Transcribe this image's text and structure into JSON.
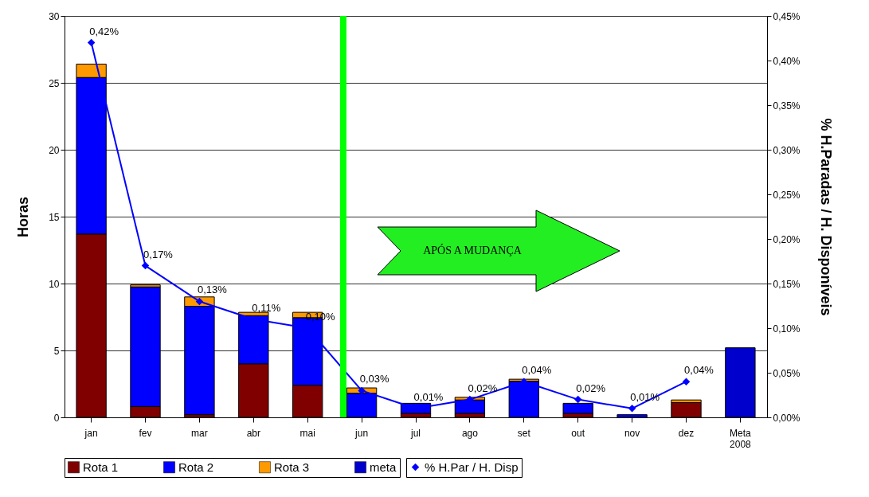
{
  "chart_data": {
    "type": "bar",
    "stacked": true,
    "categories": [
      "jan",
      "fev",
      "mar",
      "abr",
      "mai",
      "jun",
      "jul",
      "ago",
      "set",
      "out",
      "nov",
      "dez",
      "Meta 2008"
    ],
    "series": [
      {
        "name": "Rota 1",
        "color": "#800000",
        "values": [
          13.7,
          0.8,
          0.2,
          4.0,
          2.4,
          null,
          0.3,
          0.3,
          null,
          0.3,
          null,
          1.1,
          null
        ]
      },
      {
        "name": "Rota 2",
        "color": "#0000ff",
        "values": [
          11.7,
          8.95,
          8.1,
          3.6,
          5.05,
          1.8,
          0.75,
          1.0,
          2.7,
          0.75,
          0.2,
          null,
          null
        ]
      },
      {
        "name": "Rota 3",
        "color": "#ff9900",
        "values": [
          1.0,
          0.15,
          0.7,
          0.25,
          0.4,
          0.4,
          null,
          0.2,
          0.15,
          null,
          null,
          0.2,
          null
        ]
      },
      {
        "name": "meta",
        "color": "#0000cc",
        "values": [
          null,
          null,
          null,
          null,
          null,
          null,
          null,
          null,
          null,
          null,
          null,
          null,
          5.2
        ]
      },
      {
        "name": "% H.Par / H. Disp",
        "type": "line",
        "axis": "y2",
        "color": "#0000ff",
        "marker": "diamond",
        "line_style": "solid",
        "values": [
          0.42,
          0.17,
          0.13,
          0.11,
          0.1,
          0.03,
          0.01,
          0.02,
          0.04,
          0.02,
          0.01,
          0.04,
          null
        ],
        "value_labels": [
          "0,42%",
          "0,17%",
          "0,13%",
          "0,11%",
          "0,10%",
          "0,03%",
          "0,01%",
          "0,02%",
          "0,04%",
          "0,02%",
          "0,01%",
          "0,04%",
          null
        ]
      }
    ],
    "ylabel": "Horas",
    "y2label": "% H.Paradas / H. Disponíveis",
    "ylim": [
      0,
      30
    ],
    "yticks": [
      0,
      5,
      10,
      15,
      20,
      25,
      30
    ],
    "y2lim": [
      0,
      0.45
    ],
    "y2ticks": [
      {
        "value": 0,
        "label": "0,00%"
      },
      {
        "value": 0.05,
        "label": "0,05%"
      },
      {
        "value": 0.1,
        "label": "0,10%"
      },
      {
        "value": 0.15,
        "label": "0,15%"
      },
      {
        "value": 0.2,
        "label": "0,20%"
      },
      {
        "value": 0.25,
        "label": "0,25%"
      },
      {
        "value": 0.3,
        "label": "0,30%"
      },
      {
        "value": 0.35,
        "label": "0,35%"
      },
      {
        "value": 0.4,
        "label": "0,40%"
      },
      {
        "value": 0.45,
        "label": "0,45%"
      }
    ],
    "ref_lines": [
      {
        "axis": "x",
        "value": "jun",
        "color": "#00ff00"
      }
    ],
    "grid": "y",
    "legend": "bottom",
    "annotations": [
      "APÓS A MUDANÇA"
    ]
  }
}
